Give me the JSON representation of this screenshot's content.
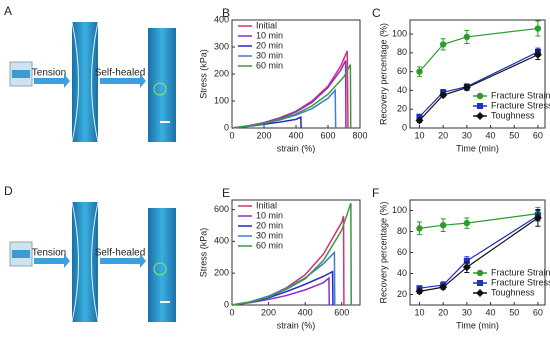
{
  "photos": [
    {
      "panel": "A",
      "labels": [
        "Tension",
        "Self-healed"
      ]
    },
    {
      "panel": "D",
      "labels": [
        "Tension",
        "Self-healed"
      ]
    }
  ],
  "chart_data": [
    {
      "type": "line",
      "panel": "B",
      "xlabel": "strain (%)",
      "ylabel": "Stress (kPa)",
      "xlim": [
        0,
        800
      ],
      "xticks": [
        0,
        200,
        400,
        600,
        800
      ],
      "ylim": [
        0,
        400
      ],
      "yticks": [
        0,
        100,
        200,
        300,
        400
      ],
      "legend": "upper left",
      "series": [
        {
          "name": "Initial",
          "color": "#d6307c",
          "x": [
            0,
            100,
            200,
            300,
            400,
            500,
            600,
            680,
            720,
            725
          ],
          "values": [
            0,
            8,
            20,
            38,
            62,
            100,
            155,
            230,
            285,
            0
          ]
        },
        {
          "name": "10 min",
          "color": "#8a2fc6",
          "x": [
            0,
            100,
            200,
            300,
            400,
            500,
            600,
            680,
            710,
            712
          ],
          "values": [
            0,
            8,
            19,
            36,
            60,
            95,
            150,
            215,
            250,
            0
          ]
        },
        {
          "name": "20 min",
          "color": "#2525c8",
          "x": [
            0,
            100,
            200,
            300,
            400,
            430,
            432
          ],
          "values": [
            0,
            6,
            14,
            22,
            32,
            40,
            0
          ]
        },
        {
          "name": "30 min",
          "color": "#3c7fd4",
          "x": [
            0,
            100,
            200,
            300,
            400,
            500,
            600,
            645,
            648
          ],
          "values": [
            0,
            7,
            17,
            30,
            48,
            72,
            110,
            140,
            0
          ]
        },
        {
          "name": "60 min",
          "color": "#3a9a3a",
          "x": [
            0,
            100,
            200,
            300,
            400,
            500,
            600,
            700,
            740,
            742
          ],
          "values": [
            0,
            7,
            17,
            32,
            52,
            82,
            125,
            190,
            235,
            0
          ]
        }
      ]
    },
    {
      "type": "line",
      "panel": "C",
      "xlabel": "Time (min)",
      "ylabel": "Recovery percentage (%)",
      "xlim": [
        6,
        63
      ],
      "xticks": [
        10,
        20,
        30,
        40,
        50,
        60
      ],
      "ylim": [
        0,
        115
      ],
      "yticks": [
        0,
        20,
        40,
        60,
        80,
        100
      ],
      "legend": "lower right",
      "series": [
        {
          "name": "Fracture Strain",
          "color": "#2e9a2e",
          "marker": "o",
          "x": [
            10,
            20,
            30,
            60
          ],
          "values": [
            60,
            89,
            97,
            106
          ],
          "errors": [
            5,
            6,
            7,
            8
          ]
        },
        {
          "name": "Fracture Stress",
          "color": "#1f2fc0",
          "marker": "s",
          "x": [
            10,
            20,
            30,
            60
          ],
          "values": [
            12,
            38,
            44,
            81
          ],
          "errors": [
            2,
            3,
            3,
            4
          ]
        },
        {
          "name": "Toughness",
          "color": "#111111",
          "marker": "D",
          "x": [
            10,
            20,
            30,
            60
          ],
          "values": [
            8,
            35,
            43,
            78
          ],
          "errors": [
            2,
            2,
            3,
            5
          ]
        }
      ]
    },
    {
      "type": "line",
      "panel": "E",
      "xlabel": "strain (%)",
      "ylabel": "Stress (kPa)",
      "xlim": [
        0,
        700
      ],
      "xticks": [
        0,
        200,
        400,
        600
      ],
      "ylim": [
        0,
        660
      ],
      "yticks": [
        0,
        200,
        400,
        600
      ],
      "legend": "upper left",
      "series": [
        {
          "name": "Initial",
          "color": "#d6307c",
          "x": [
            0,
            100,
            200,
            300,
            400,
            500,
            600,
            610,
            612
          ],
          "values": [
            0,
            20,
            55,
            110,
            190,
            320,
            520,
            560,
            0
          ]
        },
        {
          "name": "10 min",
          "color": "#8a2fc6",
          "x": [
            0,
            100,
            200,
            300,
            400,
            500,
            530,
            532
          ],
          "values": [
            0,
            15,
            35,
            60,
            95,
            140,
            170,
            0
          ]
        },
        {
          "name": "20 min",
          "color": "#2525c8",
          "x": [
            0,
            100,
            200,
            300,
            400,
            500,
            550,
            552
          ],
          "values": [
            0,
            18,
            45,
            85,
            130,
            180,
            210,
            0
          ]
        },
        {
          "name": "30 min",
          "color": "#3c7fd4",
          "x": [
            0,
            100,
            200,
            300,
            400,
            500,
            560,
            562
          ],
          "values": [
            0,
            20,
            55,
            105,
            170,
            260,
            330,
            0
          ]
        },
        {
          "name": "60 min",
          "color": "#3a9a3a",
          "x": [
            0,
            100,
            200,
            300,
            400,
            500,
            600,
            650,
            652
          ],
          "values": [
            0,
            18,
            50,
            100,
            165,
            280,
            470,
            640,
            0
          ]
        }
      ]
    },
    {
      "type": "line",
      "panel": "F",
      "xlabel": "Time (min)",
      "ylabel": "Recovery percentage (%)",
      "xlim": [
        6,
        63
      ],
      "xticks": [
        10,
        20,
        30,
        40,
        50,
        60
      ],
      "ylim": [
        10,
        110
      ],
      "yticks": [
        20,
        40,
        60,
        80,
        100
      ],
      "legend": "lower right",
      "series": [
        {
          "name": "Fracture Strain",
          "color": "#2e9a2e",
          "marker": "o",
          "x": [
            10,
            20,
            30,
            60
          ],
          "values": [
            83,
            86,
            88,
            97
          ],
          "errors": [
            6,
            6,
            5,
            6
          ]
        },
        {
          "name": "Fracture Stress",
          "color": "#1f2fc0",
          "marker": "s",
          "x": [
            10,
            20,
            30,
            60
          ],
          "values": [
            26,
            29,
            52,
            95
          ],
          "errors": [
            2,
            3,
            4,
            5
          ]
        },
        {
          "name": "Toughness",
          "color": "#111111",
          "marker": "D",
          "x": [
            10,
            20,
            30,
            60
          ],
          "values": [
            23,
            27,
            46,
            93
          ],
          "errors": [
            2,
            2,
            5,
            8
          ]
        }
      ]
    }
  ]
}
